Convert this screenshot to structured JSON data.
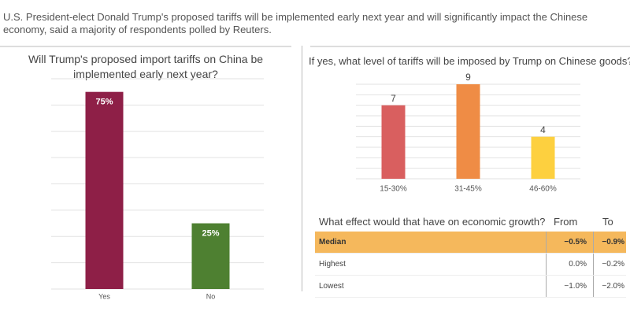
{
  "subtitle": "U.S. President-elect Donald Trump's proposed tariffs will be implemented early next year and will significantly impact the Chinese economy, said a majority of respondents polled by Reuters.",
  "chart_data": [
    {
      "type": "bar",
      "title": "Will Trump's proposed import tariffs on China be implemented early next year?",
      "categories": [
        "Yes",
        "No"
      ],
      "values": [
        75,
        25
      ],
      "value_labels": [
        "75%",
        "25%"
      ],
      "colors": [
        "#8e1f47",
        "#4e8031"
      ],
      "ylim": [
        0,
        80
      ],
      "yticks": [
        0,
        10,
        20,
        30,
        40,
        50,
        60,
        70,
        80
      ],
      "grid": true,
      "label_position": "inside"
    },
    {
      "type": "bar",
      "title": "If yes, what level of tariffs will be imposed by Trump on Chinese goods?",
      "categories": [
        "15-30%",
        "31-45%",
        "46-60%"
      ],
      "values": [
        7,
        9,
        4
      ],
      "colors": [
        "#d95f5f",
        "#ef8c45",
        "#fdd03f"
      ],
      "ylim": [
        0,
        9
      ],
      "yticks": [
        0,
        1,
        2,
        3,
        4,
        5,
        6,
        7,
        8,
        9
      ],
      "grid": true,
      "label_position": "above"
    }
  ],
  "table": {
    "header": [
      "What effect would that have on economic growth?",
      "From",
      "To"
    ],
    "rows": [
      [
        "Median",
        "−0.5%",
        "−0.9%"
      ],
      [
        "Highest",
        "0.0%",
        "−0.2%"
      ],
      [
        "Lowest",
        "−1.0%",
        "−2.0%"
      ]
    ]
  }
}
